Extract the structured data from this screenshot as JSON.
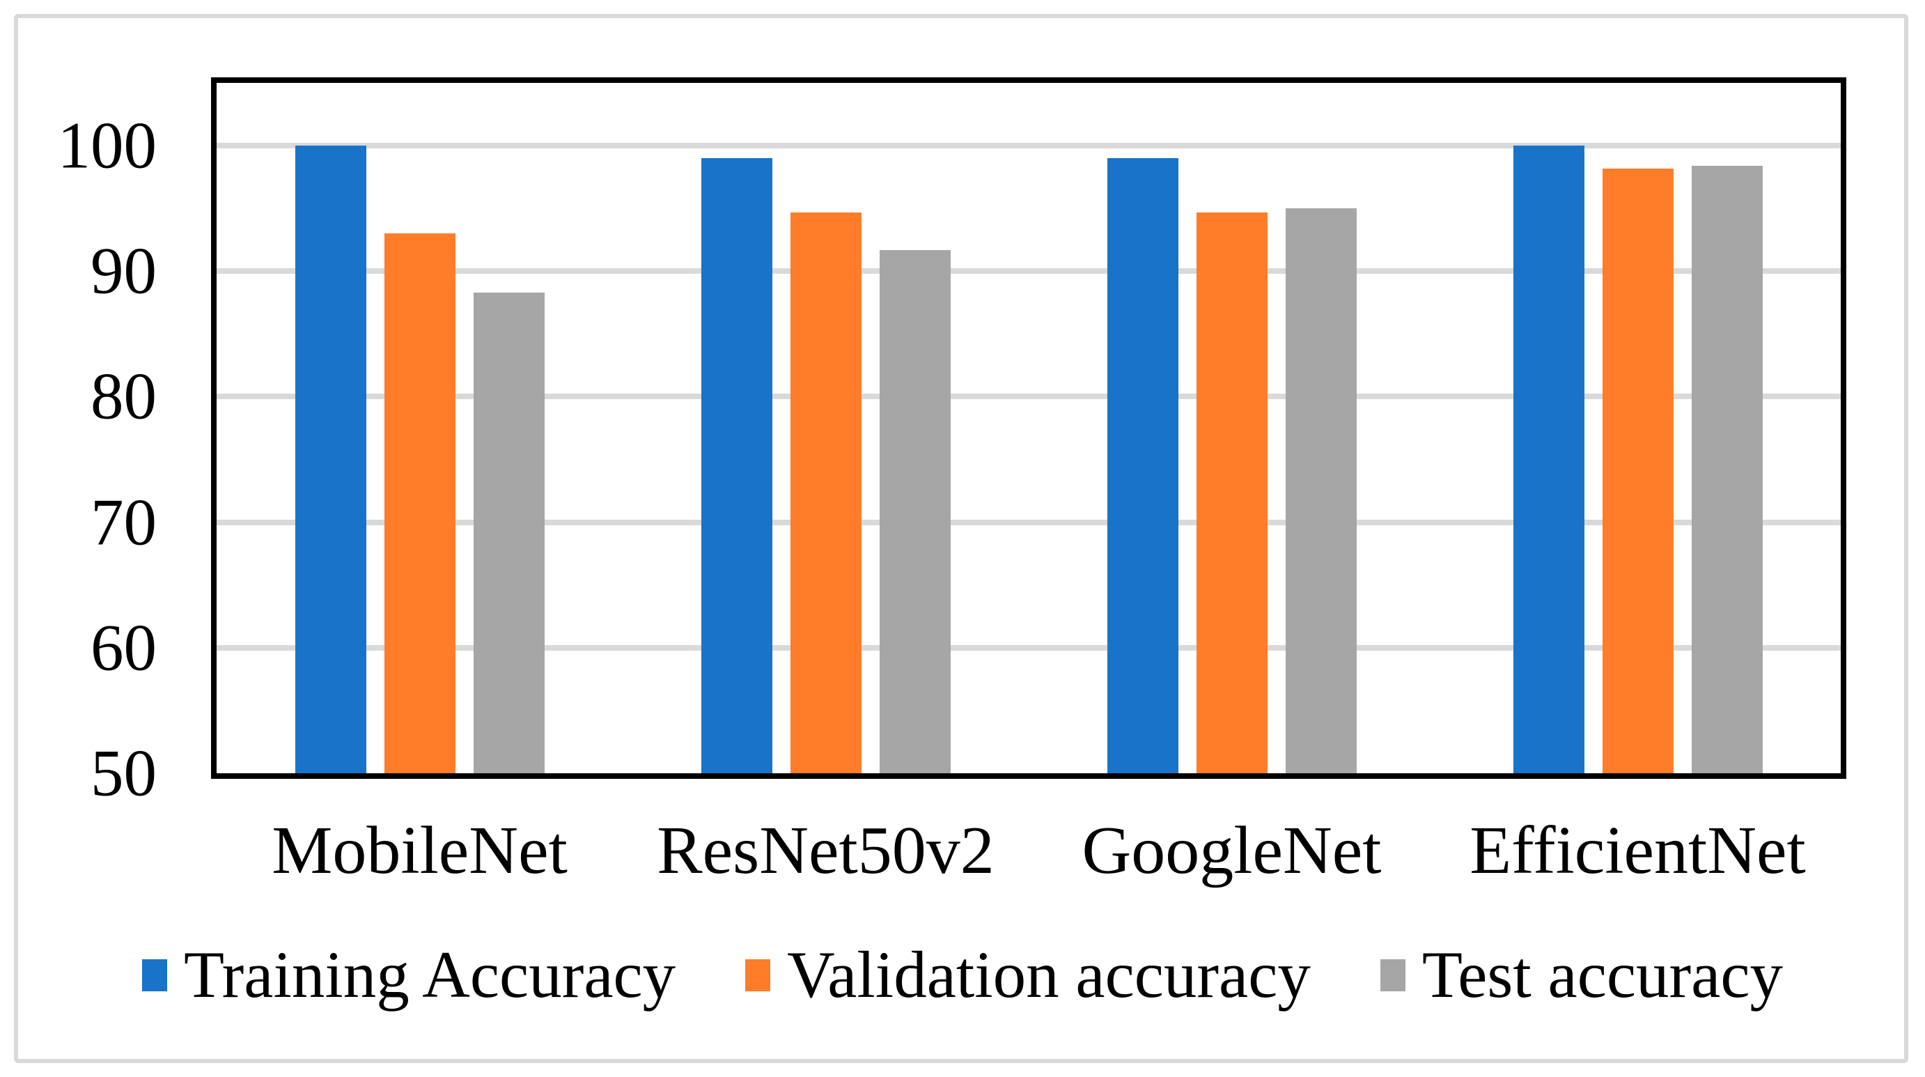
{
  "chart_data": {
    "type": "bar",
    "title": "",
    "xlabel": "",
    "ylabel": "",
    "categories": [
      "MobileNet",
      "ResNet50v2",
      "GoogleNet",
      "EfficientNet"
    ],
    "series": [
      {
        "name": "Training Accuracy",
        "color": "#1973C8",
        "values": [
          100,
          99,
          99,
          100
        ]
      },
      {
        "name": "Validation accuracy",
        "color": "#FF7D28",
        "values": [
          93,
          94.7,
          94.7,
          98.2
        ]
      },
      {
        "name": "Test accuracy",
        "color": "#A6A6A6",
        "values": [
          88.3,
          91.7,
          95,
          98.4
        ]
      }
    ],
    "ylim": [
      50,
      105
    ],
    "yticks": [
      100,
      90,
      80,
      70,
      60,
      50
    ],
    "grid": true,
    "gridline_values": [
      100,
      90,
      80,
      70,
      60
    ],
    "gridline_color": "#D9D9D9",
    "axis_color": "#000000",
    "frame_color": "#D9D9D9",
    "legend_position": "bottom"
  }
}
